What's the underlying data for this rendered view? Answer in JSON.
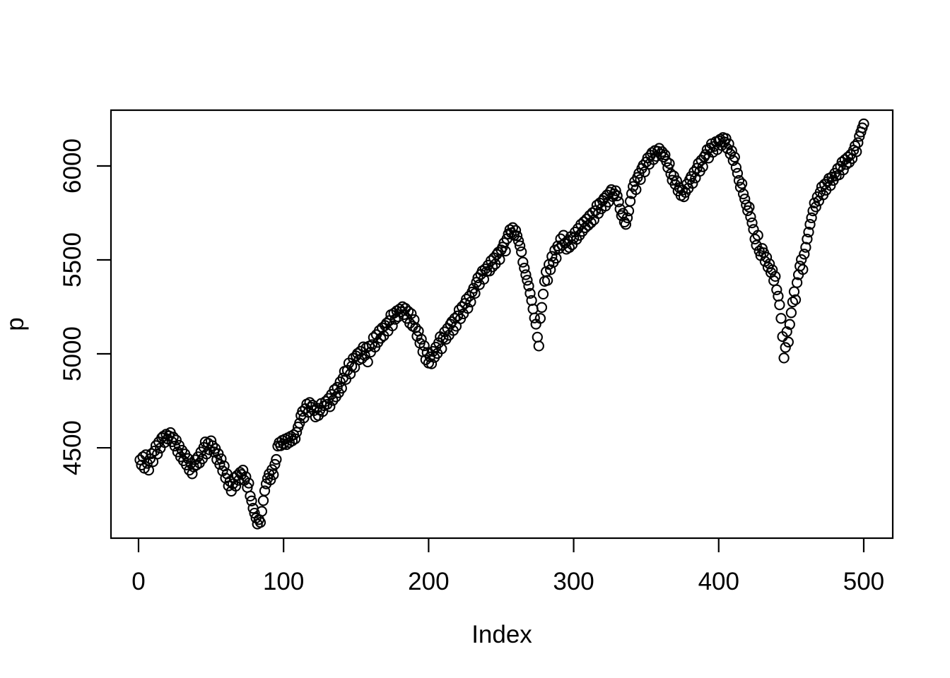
{
  "figure": {
    "background_color": "#ffffff",
    "foreground_color": "#000000"
  },
  "chart_data": {
    "type": "scatter",
    "title": "",
    "xlabel": "Index",
    "ylabel": "p",
    "x_ticks": [
      0,
      100,
      200,
      300,
      400,
      500
    ],
    "y_ticks": [
      4500,
      5000,
      5500,
      6000
    ],
    "xlim": [
      -19,
      520
    ],
    "ylim": [
      4019,
      6297
    ],
    "grid": false,
    "legend_position": "none",
    "marker": {
      "shape": "open-circle",
      "color": "#000000",
      "radius_px": 6.6,
      "stroke_px": 2.1
    },
    "x_is_index": true,
    "x_start": 1,
    "series": [
      {
        "name": "p",
        "y": [
          4436,
          4408,
          4452,
          4391,
          4463,
          4417,
          4381,
          4442,
          4469,
          4426,
          4483,
          4512,
          4467,
          4531,
          4498,
          4553,
          4561,
          4528,
          4572,
          4547,
          4563,
          4581,
          4532,
          4557,
          4509,
          4541,
          4478,
          4513,
          4452,
          4487,
          4431,
          4467,
          4409,
          4443,
          4381,
          4417,
          4362,
          4398,
          4436,
          4409,
          4452,
          4419,
          4478,
          4441,
          4502,
          4531,
          4467,
          4524,
          4489,
          4537,
          4511,
          4478,
          4496,
          4437,
          4469,
          4412,
          4441,
          4377,
          4403,
          4339,
          4361,
          4297,
          4321,
          4269,
          4308,
          4341,
          4296,
          4353,
          4327,
          4369,
          4358,
          4381,
          4327,
          4346,
          4289,
          4312,
          4243,
          4217,
          4178,
          4152,
          4126,
          4094,
          4118,
          4103,
          4162,
          4219,
          4271,
          4308,
          4337,
          4361,
          4329,
          4384,
          4357,
          4412,
          4438,
          4509,
          4528,
          4511,
          4539,
          4521,
          4546,
          4517,
          4553,
          4528,
          4561,
          4537,
          4569,
          4548,
          4583,
          4611,
          4631,
          4672,
          4694,
          4659,
          4708,
          4733,
          4689,
          4741,
          4716,
          4727,
          4698,
          4664,
          4711,
          4672,
          4701,
          4736,
          4693,
          4724,
          4747,
          4731,
          4763,
          4719,
          4784,
          4752,
          4809,
          4771,
          4822,
          4793,
          4851,
          4817,
          4871,
          4907,
          4864,
          4912,
          4951,
          4893,
          4934,
          4977,
          4928,
          4989,
          5002,
          4968,
          5014,
          4976,
          5037,
          4991,
          5032,
          4957,
          5041,
          5009,
          5049,
          5087,
          5036,
          5102,
          5061,
          5124,
          5083,
          5139,
          5096,
          5151,
          5163,
          5121,
          5177,
          5208,
          5149,
          5216,
          5184,
          5229,
          5197,
          5238,
          5224,
          5251,
          5209,
          5242,
          5189,
          5226,
          5163,
          5214,
          5147,
          5182,
          5139,
          5094,
          5121,
          5057,
          5078,
          5011,
          5043,
          4969,
          5007,
          4951,
          4984,
          4947,
          5013,
          4981,
          5036,
          5002,
          5059,
          5091,
          5027,
          5084,
          5117,
          5078,
          5136,
          5099,
          5158,
          5171,
          5124,
          5189,
          5147,
          5202,
          5234,
          5187,
          5251,
          5213,
          5268,
          5291,
          5242,
          5307,
          5276,
          5329,
          5349,
          5322,
          5381,
          5405,
          5368,
          5423,
          5441,
          5397,
          5452,
          5438,
          5472,
          5441,
          5496,
          5463,
          5511,
          5478,
          5529,
          5541,
          5502,
          5553,
          5568,
          5591,
          5547,
          5612,
          5638,
          5661,
          5644,
          5672,
          5631,
          5657,
          5628,
          5601,
          5575,
          5543,
          5488,
          5456,
          5421,
          5392,
          5361,
          5322,
          5284,
          5239,
          5191,
          5158,
          5089,
          5042,
          5189,
          5247,
          5318,
          5386,
          5437,
          5391,
          5476,
          5448,
          5519,
          5487,
          5552,
          5509,
          5574,
          5561,
          5612,
          5578,
          5631,
          5589,
          5557,
          5603,
          5566,
          5624,
          5581,
          5617,
          5648,
          5609,
          5667,
          5631,
          5689,
          5652,
          5703,
          5671,
          5718,
          5684,
          5736,
          5698,
          5751,
          5713,
          5762,
          5791,
          5747,
          5803,
          5772,
          5816,
          5829,
          5787,
          5846,
          5808,
          5861,
          5874,
          5837,
          5852,
          5868,
          5841,
          5809,
          5771,
          5736,
          5748,
          5701,
          5689,
          5724,
          5761,
          5812,
          5853,
          5891,
          5917,
          5874,
          5939,
          5961,
          5928,
          5987,
          6004,
          5969,
          6021,
          6043,
          6009,
          6057,
          6071,
          6034,
          6082,
          6051,
          6078,
          6094,
          6063,
          6076,
          6047,
          6059,
          6024,
          5991,
          6013,
          5958,
          5924,
          5947,
          5902,
          5921,
          5867,
          5884,
          5843,
          5872,
          5836,
          5859,
          5903,
          5881,
          5927,
          5944,
          5907,
          5969,
          5936,
          5988,
          6014,
          5972,
          6031,
          5996,
          6048,
          6061,
          6087,
          6042,
          6096,
          6118,
          6073,
          6104,
          6129,
          6087,
          6134,
          6142,
          6109,
          6151,
          6127,
          6146,
          6092,
          6118,
          6064,
          6081,
          6029,
          6047,
          5992,
          5961,
          5923,
          5887,
          5906,
          5851,
          5824,
          5793,
          5762,
          5781,
          5729,
          5697,
          5662,
          5611,
          5578,
          5631,
          5547,
          5523,
          5561,
          5538,
          5492,
          5514,
          5461,
          5479,
          5433,
          5447,
          5389,
          5412,
          5341,
          5307,
          5261,
          5189,
          5092,
          4978,
          5034,
          5118,
          5063,
          5157,
          5219,
          5276,
          5331,
          5288,
          5379,
          5421,
          5467,
          5502,
          5449,
          5531,
          5567,
          5611,
          5648,
          5689,
          5724,
          5761,
          5803,
          5782,
          5836,
          5814,
          5861,
          5889,
          5846,
          5903,
          5871,
          5917,
          5934,
          5896,
          5941,
          5923,
          5961,
          5947,
          5986,
          5953,
          5998,
          6021,
          5979,
          6034,
          6008,
          6047,
          6019,
          6061,
          6039,
          6084,
          6107,
          6076,
          6124,
          6158,
          6181,
          6203,
          6224
        ]
      }
    ]
  }
}
